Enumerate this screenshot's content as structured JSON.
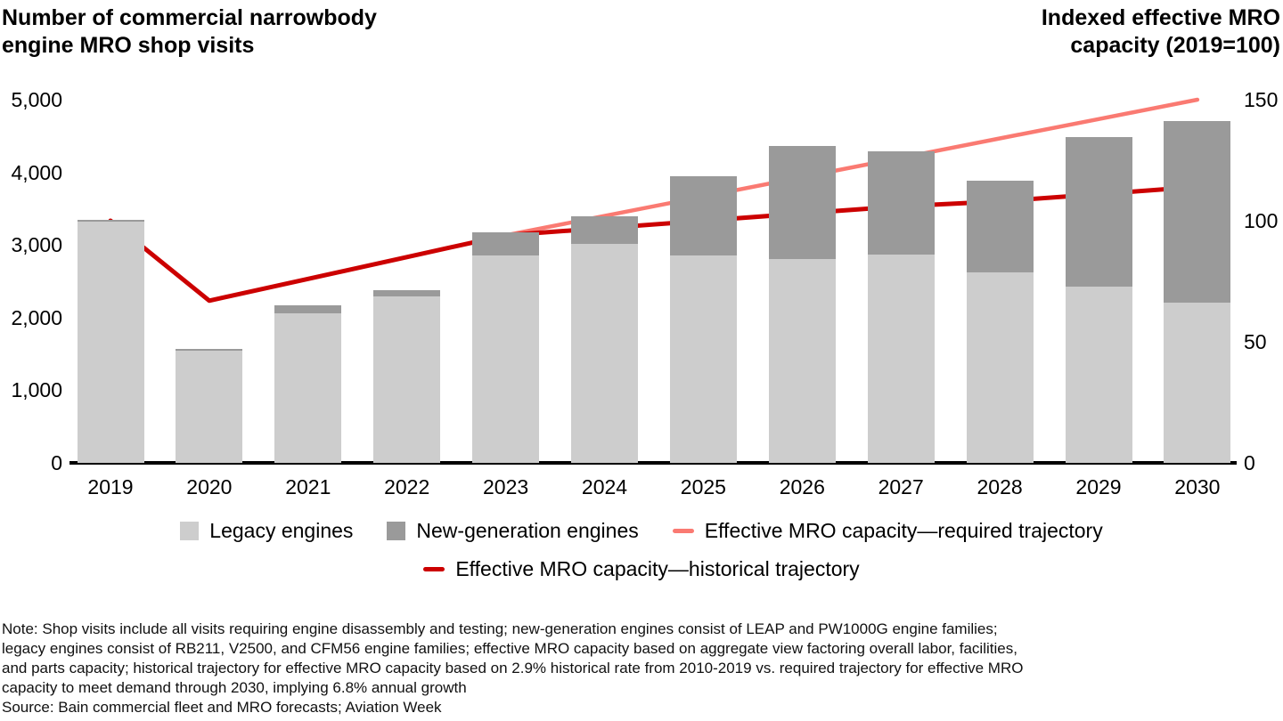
{
  "header": {
    "left_title_line1": "Number of commercial narrowbody",
    "left_title_line2": "engine MRO shop visits",
    "right_title_line1": "Indexed effective MRO",
    "right_title_line2": "capacity (2019=100)"
  },
  "chart_data": {
    "type": "bar",
    "subtype": "stacked-bars-with-dual-axis-lines",
    "categories": [
      "2019",
      "2020",
      "2021",
      "2022",
      "2023",
      "2024",
      "2025",
      "2026",
      "2027",
      "2028",
      "2029",
      "2030"
    ],
    "bar_series": [
      {
        "name": "Legacy engines",
        "color": "#cdcdcd",
        "values": [
          3320,
          1550,
          2060,
          2290,
          2850,
          3020,
          2860,
          2810,
          2870,
          2620,
          2430,
          2210
        ]
      },
      {
        "name": "New-generation engines",
        "color": "#9a9a9a",
        "values": [
          30,
          20,
          110,
          90,
          320,
          380,
          1080,
          1550,
          1420,
          1270,
          2050,
          2490
        ]
      }
    ],
    "line_series": [
      {
        "name": "Effective MRO capacity—required trajectory",
        "color": "#fa7a72",
        "axis": "right",
        "start_index": 4,
        "stroke": 4.5,
        "values": [
          94,
          102,
          110,
          118,
          126,
          134,
          142,
          150
        ]
      },
      {
        "name": "Effective MRO capacity—historical trajectory",
        "color": "#cc0000",
        "axis": "right",
        "start_index": 0,
        "stroke": 5,
        "values": [
          100,
          67,
          76,
          85,
          94,
          97,
          100,
          103,
          106,
          108,
          111,
          114
        ]
      }
    ],
    "left_axis": {
      "title": "Number of commercial narrowbody engine MRO shop visits",
      "ticks": [
        "0",
        "1,000",
        "2,000",
        "3,000",
        "4,000",
        "5,000"
      ],
      "tick_values": [
        0,
        1000,
        2000,
        3000,
        4000,
        5000
      ],
      "range": [
        0,
        5000
      ]
    },
    "right_axis": {
      "title": "Indexed effective MRO capacity (2019=100)",
      "ticks": [
        "0",
        "50",
        "100",
        "150"
      ],
      "tick_values": [
        0,
        50,
        100,
        150
      ],
      "range": [
        0,
        150
      ]
    },
    "grid": false,
    "legend_position": "bottom-center"
  },
  "legend": {
    "row1": [
      {
        "type": "swatch",
        "color": "#cdcdcd",
        "label": "Legacy engines"
      },
      {
        "type": "swatch",
        "color": "#9a9a9a",
        "label": "New-generation engines"
      },
      {
        "type": "dash",
        "color": "#fa7a72",
        "label": "Effective MRO capacity—required trajectory"
      }
    ],
    "row2": [
      {
        "type": "dash",
        "color": "#cc0000",
        "label": "Effective MRO capacity—historical trajectory"
      }
    ]
  },
  "note": {
    "lines": [
      "Note: Shop visits include all visits requiring engine disassembly and testing; new-generation engines consist of LEAP and PW1000G engine families;",
      "legacy engines consist of RB211, V2500, and CFM56 engine families; effective MRO capacity based on aggregate view factoring overall labor, facilities,",
      "and parts capacity; historical trajectory for effective MRO capacity based on 2.9% historical rate from 2010-2019 vs. required trajectory for effective MRO",
      "capacity to meet demand through 2030, implying 6.8% annual growth"
    ],
    "source": "Source: Bain commercial fleet and MRO forecasts; Aviation Week"
  }
}
